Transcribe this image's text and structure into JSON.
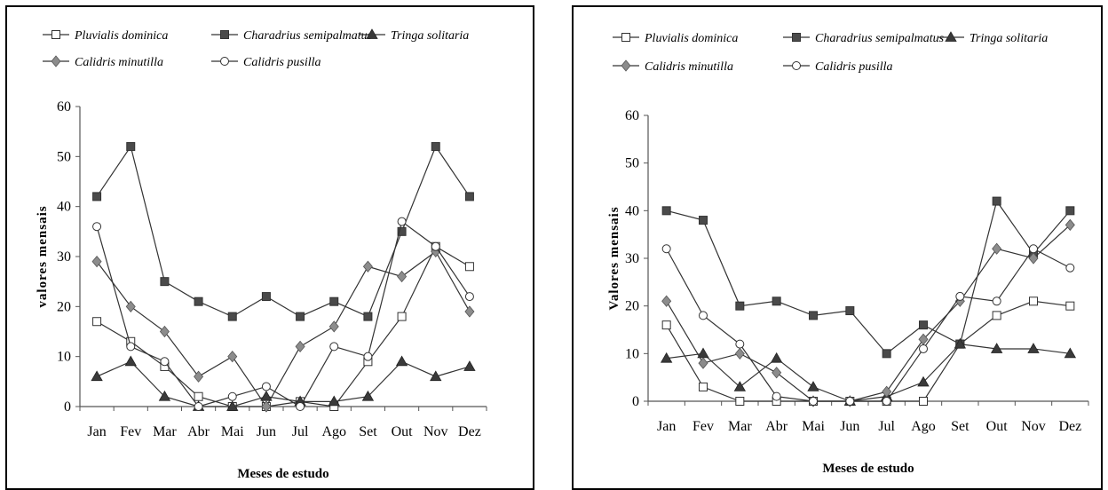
{
  "chart_data": [
    {
      "type": "line",
      "title": "",
      "xlabel": "Meses de estudo",
      "ylabel": "valores mensais",
      "ylim": [
        0,
        60
      ],
      "yticks": [
        0,
        10,
        20,
        30,
        40,
        50,
        60
      ],
      "categories": [
        "Jan",
        "Fev",
        "Mar",
        "Abr",
        "Mai",
        "Jun",
        "Jul",
        "Ago",
        "Set",
        "Out",
        "Nov",
        "Dez"
      ],
      "legend_position": "top",
      "grid": false,
      "series": [
        {
          "name": "Pluvialis dominica",
          "marker": "open-square",
          "values": [
            17,
            13,
            8,
            2,
            0,
            0,
            1,
            0,
            9,
            18,
            32,
            28
          ]
        },
        {
          "name": "Charadrius semipalmatus",
          "marker": "filled-square",
          "values": [
            42,
            52,
            25,
            21,
            18,
            22,
            18,
            21,
            18,
            35,
            52,
            42
          ]
        },
        {
          "name": "Tringa solitaria",
          "marker": "filled-triangle",
          "values": [
            6,
            9,
            2,
            0,
            0,
            2,
            1,
            1,
            2,
            9,
            6,
            8
          ]
        },
        {
          "name": "Calidris minutilla",
          "marker": "diamond",
          "values": [
            29,
            20,
            15,
            6,
            10,
            0,
            12,
            16,
            28,
            26,
            31,
            19
          ]
        },
        {
          "name": "Calidris pusilla",
          "marker": "open-circle",
          "values": [
            36,
            12,
            9,
            0,
            2,
            4,
            0,
            12,
            10,
            37,
            32,
            22
          ]
        }
      ]
    },
    {
      "type": "line",
      "title": "",
      "xlabel": "Meses de estudo",
      "ylabel": "Valores mensais",
      "ylim": [
        0,
        60
      ],
      "yticks": [
        0,
        10,
        20,
        30,
        40,
        50,
        60
      ],
      "categories": [
        "Jan",
        "Fev",
        "Mar",
        "Abr",
        "Mai",
        "Jun",
        "Jul",
        "Ago",
        "Set",
        "Out",
        "Nov",
        "Dez"
      ],
      "legend_position": "top",
      "grid": false,
      "series": [
        {
          "name": "Pluvialis dominica",
          "marker": "open-square",
          "values": [
            16,
            3,
            0,
            0,
            0,
            0,
            0,
            0,
            12,
            18,
            21,
            20
          ]
        },
        {
          "name": "Charadrius semipalmatus",
          "marker": "filled-square",
          "values": [
            40,
            38,
            20,
            21,
            18,
            19,
            10,
            16,
            12,
            42,
            31,
            40
          ]
        },
        {
          "name": "Tringa solitaria",
          "marker": "filled-triangle",
          "values": [
            9,
            10,
            3,
            9,
            3,
            0,
            1,
            4,
            12,
            11,
            11,
            10
          ]
        },
        {
          "name": "Calidris minutilla",
          "marker": "diamond",
          "values": [
            21,
            8,
            10,
            6,
            0,
            0,
            2,
            13,
            21,
            32,
            30,
            37
          ]
        },
        {
          "name": "Calidris pusilla",
          "marker": "open-circle",
          "values": [
            32,
            18,
            12,
            1,
            0,
            0,
            0,
            11,
            22,
            21,
            32,
            28
          ]
        }
      ]
    }
  ]
}
